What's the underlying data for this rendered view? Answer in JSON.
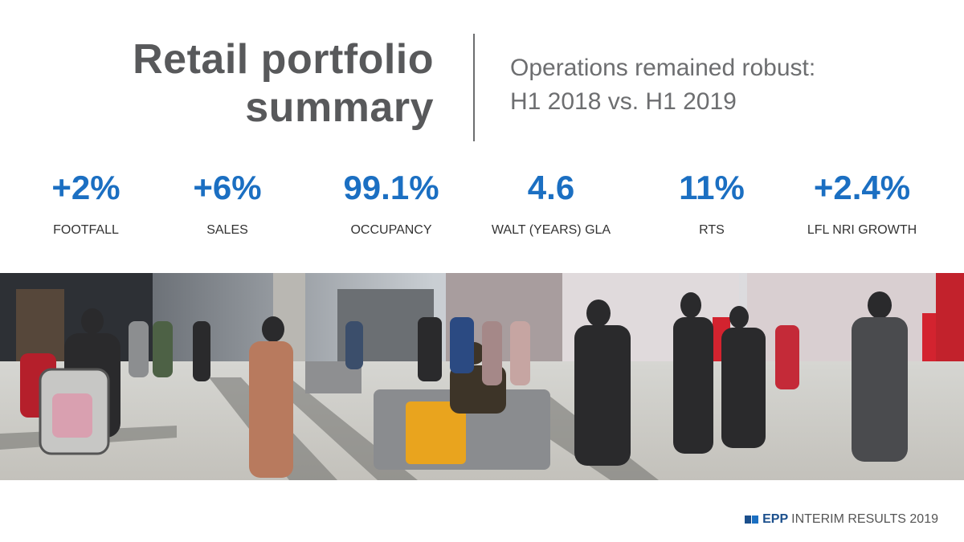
{
  "header": {
    "title_lines": [
      "Retail portfolio",
      "summary"
    ],
    "subtitle_lines": [
      "Operations remained robust:",
      "H1 2018 vs. H1 2019"
    ]
  },
  "metrics": [
    {
      "value": "+2%",
      "label": "FOOTFALL"
    },
    {
      "value": "+6%",
      "label": "SALES"
    },
    {
      "value": "99.1%",
      "label": "OCCUPANCY"
    },
    {
      "value": "4.6",
      "label": "WALT (YEARS) GLA"
    },
    {
      "value": "11%",
      "label": "RTS"
    },
    {
      "value": "+2.4%",
      "label": "LFL NRI GROWTH"
    }
  ],
  "footer": {
    "logo": "EPP",
    "text": "INTERIM RESULTS 2019"
  }
}
